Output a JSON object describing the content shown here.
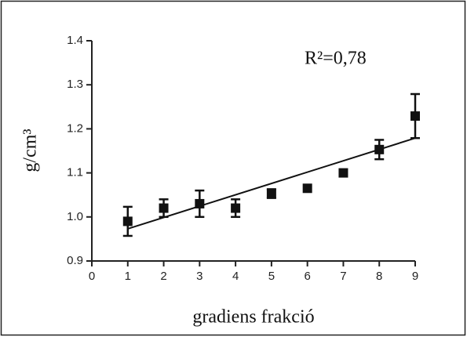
{
  "chart_data": {
    "type": "scatter",
    "title_annotation": "R²=0,78",
    "xlabel": "gradiens frakció",
    "ylabel": "g/cm³",
    "x": [
      1,
      2,
      3,
      4,
      5,
      6,
      7,
      8,
      9
    ],
    "series": [
      {
        "color": "#111111",
        "values": [
          0.99,
          1.02,
          1.03,
          1.02,
          1.053,
          1.065,
          1.1,
          1.153,
          1.229
        ],
        "errors": [
          0.033,
          0.02,
          0.03,
          0.02,
          0.01,
          0,
          0,
          0.022,
          0.05
        ]
      }
    ],
    "trendline": {
      "x": [
        1,
        9
      ],
      "values": [
        0.973,
        1.179
      ],
      "color": "#111111"
    },
    "xlim": [
      0,
      9
    ],
    "xticks": [
      0,
      1,
      2,
      3,
      4,
      5,
      6,
      7,
      8,
      9
    ],
    "ylim": [
      0.9,
      1.4
    ],
    "yticks": [
      0.9,
      {
        "value": 1,
        "label": "1.0"
      },
      1.1,
      1.2,
      1.3,
      1.4
    ]
  }
}
